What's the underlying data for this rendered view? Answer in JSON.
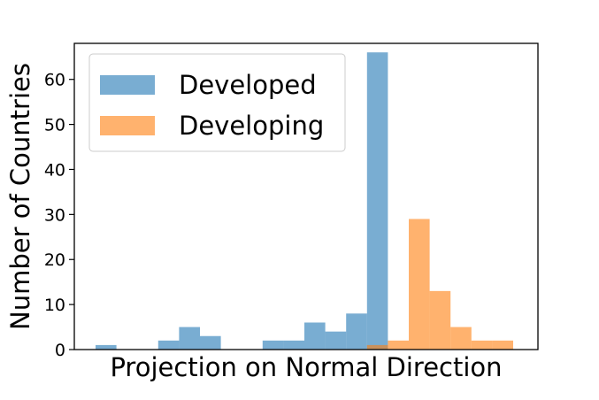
{
  "chart_data": {
    "type": "bar",
    "title": "",
    "xlabel": "Projection on Normal Direction",
    "ylabel": "Number of Countries",
    "ylim": [
      0,
      68
    ],
    "yticks": [
      0,
      10,
      20,
      30,
      40,
      50,
      60
    ],
    "xticks_visible": false,
    "grid": false,
    "legend_position": "top-left",
    "bins": 20,
    "series": [
      {
        "name": "Developed",
        "color": "#1f77b4",
        "opacity": 0.6,
        "values": [
          1,
          0,
          0,
          2,
          5,
          3,
          0,
          0,
          2,
          2,
          6,
          4,
          8,
          66
        ]
      },
      {
        "name": "Developing",
        "color": "#ff7f0e",
        "opacity": 0.6,
        "values": [
          0,
          0,
          0,
          0,
          0,
          0,
          0,
          0,
          0,
          0,
          0,
          0,
          0,
          1,
          2,
          29,
          13,
          5,
          2,
          2
        ]
      }
    ]
  }
}
